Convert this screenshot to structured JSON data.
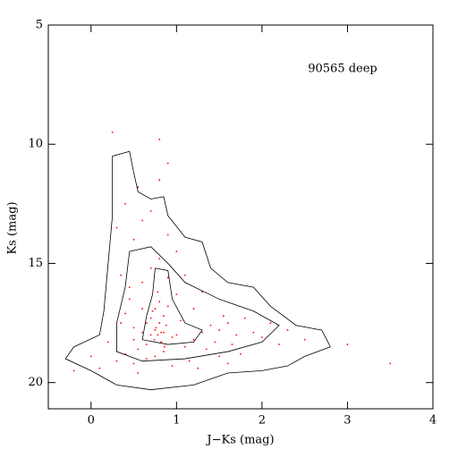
{
  "chart_data": {
    "type": "scatter",
    "annotation": "90565 deep",
    "xlabel": "J−Ks (mag)",
    "ylabel": "Ks (mag)",
    "xlim": [
      -0.5,
      4
    ],
    "ylim": [
      21.1,
      5
    ],
    "xticks": [
      0,
      1,
      2,
      3,
      4
    ],
    "yticks": [
      5,
      10,
      15,
      20
    ],
    "points": {
      "color": "#ff0000",
      "x": [
        0.8,
        0.75,
        0.85,
        0.7,
        0.9,
        0.78,
        0.82,
        0.72,
        0.88,
        0.95,
        0.65,
        0.6,
        0.55,
        0.5,
        1.0,
        1.05,
        1.1,
        1.2,
        1.3,
        1.4,
        1.5,
        1.6,
        1.7,
        1.8,
        1.45,
        1.55,
        1.65,
        1.35,
        1.9,
        2.0,
        2.1,
        2.2,
        2.3,
        2.5,
        0.4,
        0.35,
        0.3,
        0.2,
        0.1,
        0.0,
        -0.2,
        0.45,
        0.6,
        0.7,
        0.8,
        0.9,
        1.0,
        1.2,
        0.5,
        0.55,
        0.65,
        0.75,
        0.85,
        0.95,
        1.15,
        1.25,
        1.5,
        1.6,
        1.75,
        0.3,
        0.4,
        0.5,
        0.6,
        0.7,
        0.8,
        0.9,
        1.0,
        0.7,
        0.75,
        0.8,
        0.85,
        0.6,
        0.65,
        0.4,
        0.45,
        0.35,
        0.5,
        1.1,
        1.3,
        0.8,
        0.9,
        0.55,
        0.25,
        3.0,
        3.5,
        0.78,
        0.82,
        0.76,
        0.74,
        0.86
      ],
      "y": [
        17.5,
        17.8,
        17.2,
        18.0,
        16.8,
        16.2,
        18.3,
        17.0,
        17.6,
        18.1,
        18.4,
        17.9,
        18.6,
        18.2,
        18.0,
        17.4,
        18.5,
        18.2,
        17.9,
        17.6,
        17.8,
        17.5,
        18.0,
        17.3,
        18.3,
        17.2,
        18.4,
        18.6,
        17.9,
        18.1,
        17.5,
        18.4,
        17.8,
        18.2,
        18.8,
        17.5,
        19.1,
        18.3,
        19.4,
        18.9,
        19.5,
        16.5,
        15.8,
        15.2,
        14.8,
        15.6,
        16.3,
        16.9,
        19.2,
        19.6,
        19.0,
        18.9,
        18.7,
        19.3,
        19.1,
        19.4,
        18.9,
        19.2,
        18.8,
        13.5,
        12.5,
        14.0,
        13.2,
        12.8,
        11.5,
        13.8,
        14.5,
        17.3,
        16.9,
        16.6,
        17.9,
        16.9,
        17.5,
        17.1,
        16.0,
        15.5,
        17.7,
        15.5,
        16.2,
        9.8,
        10.8,
        11.8,
        9.5,
        18.4,
        19.2,
        18.0,
        17.9,
        17.7,
        18.2,
        18.5
      ]
    },
    "contours": [
      {
        "color": "#000000",
        "x": [
          0.25,
          0.45,
          0.5,
          0.55,
          0.7,
          0.85,
          0.9,
          1.1,
          1.3,
          1.4,
          1.6,
          1.9,
          2.1,
          2.4,
          2.7,
          2.8,
          2.5,
          2.3,
          2.0,
          1.6,
          1.2,
          0.7,
          0.3,
          0.0,
          -0.3,
          -0.2,
          0.1,
          0.15,
          0.2,
          0.25,
          0.25
        ],
        "y": [
          10.5,
          10.3,
          11.2,
          12,
          12.3,
          12.2,
          13,
          13.9,
          14.1,
          15.2,
          15.8,
          16,
          16.8,
          17.6,
          17.8,
          18.5,
          18.9,
          19.3,
          19.5,
          19.6,
          20.1,
          20.3,
          20.1,
          19.5,
          19.0,
          18.5,
          18,
          17,
          15,
          13,
          10.5
        ]
      },
      {
        "color": "#000000",
        "x": [
          0.45,
          0.7,
          0.9,
          1.1,
          1.5,
          1.9,
          2.2,
          2.0,
          1.6,
          1.1,
          0.6,
          0.3,
          0.3,
          0.4,
          0.45
        ],
        "y": [
          14.5,
          14.3,
          15,
          15.8,
          16.5,
          17,
          17.6,
          18.3,
          18.7,
          19.0,
          19.1,
          18.7,
          17.5,
          16,
          14.5
        ]
      },
      {
        "color": "#000000",
        "x": [
          0.75,
          0.9,
          0.95,
          1.1,
          1.3,
          1.2,
          0.9,
          0.6,
          0.65,
          0.72,
          0.75
        ],
        "y": [
          15.2,
          15.3,
          16.5,
          17.5,
          17.8,
          18.3,
          18.4,
          18.2,
          17.2,
          16.3,
          15.2
        ]
      }
    ]
  }
}
